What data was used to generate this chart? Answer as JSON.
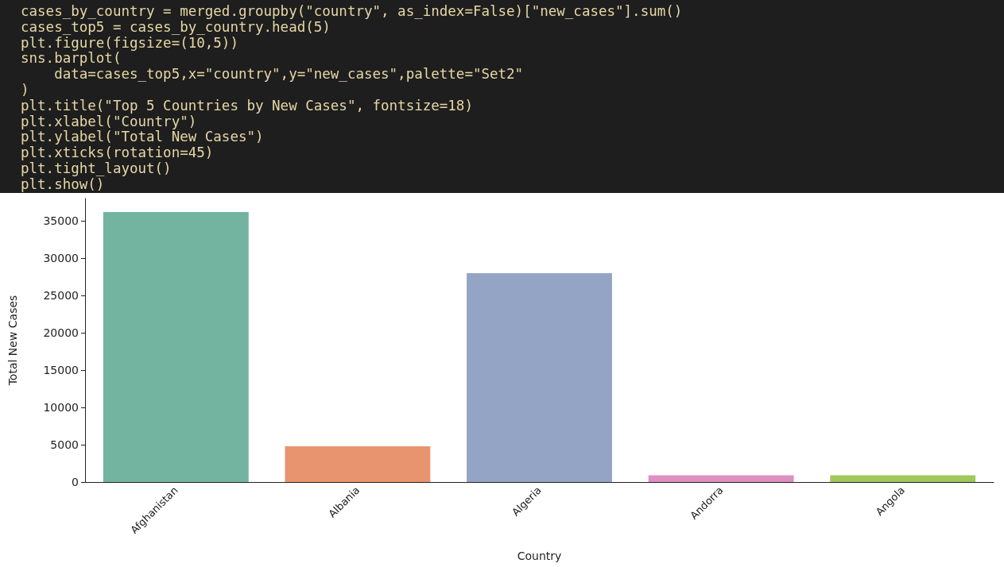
{
  "chart_data": {
    "type": "bar",
    "xlabel": "Country",
    "ylabel": "Total New Cases",
    "categories": [
      "Afghanistan",
      "Albania",
      "Algeria",
      "Andorra",
      "Angola"
    ],
    "values": [
      36200,
      4800,
      28000,
      900,
      900
    ],
    "colors": [
      "#73b4a0",
      "#e8956f",
      "#94a4c4",
      "#de90c2",
      "#a1c85c"
    ],
    "ylim": [
      0,
      38000
    ],
    "yticks": [
      0,
      5000,
      10000,
      15000,
      20000,
      25000,
      30000,
      35000
    ],
    "grid": false,
    "annotations": [
      "cases_by_country = merged.groupby(\"country\", as_index=False)[\"new_cases\"].sum()",
      "cases_top5 = cases_by_country.head(5)",
      "plt.figure(figsize=(10,5))",
      "sns.barplot(",
      "    data=cases_top5,x=\"country\",y=\"new_cases\",palette=\"Set2\"",
      ")",
      "plt.title(\"Top 5 Countries by New Cases\", fontsize=18)",
      "plt.xlabel(\"Country\")",
      "plt.ylabel(\"Total New Cases\")",
      "plt.xticks(rotation=45)",
      "plt.tight_layout()",
      "plt.show()"
    ]
  }
}
